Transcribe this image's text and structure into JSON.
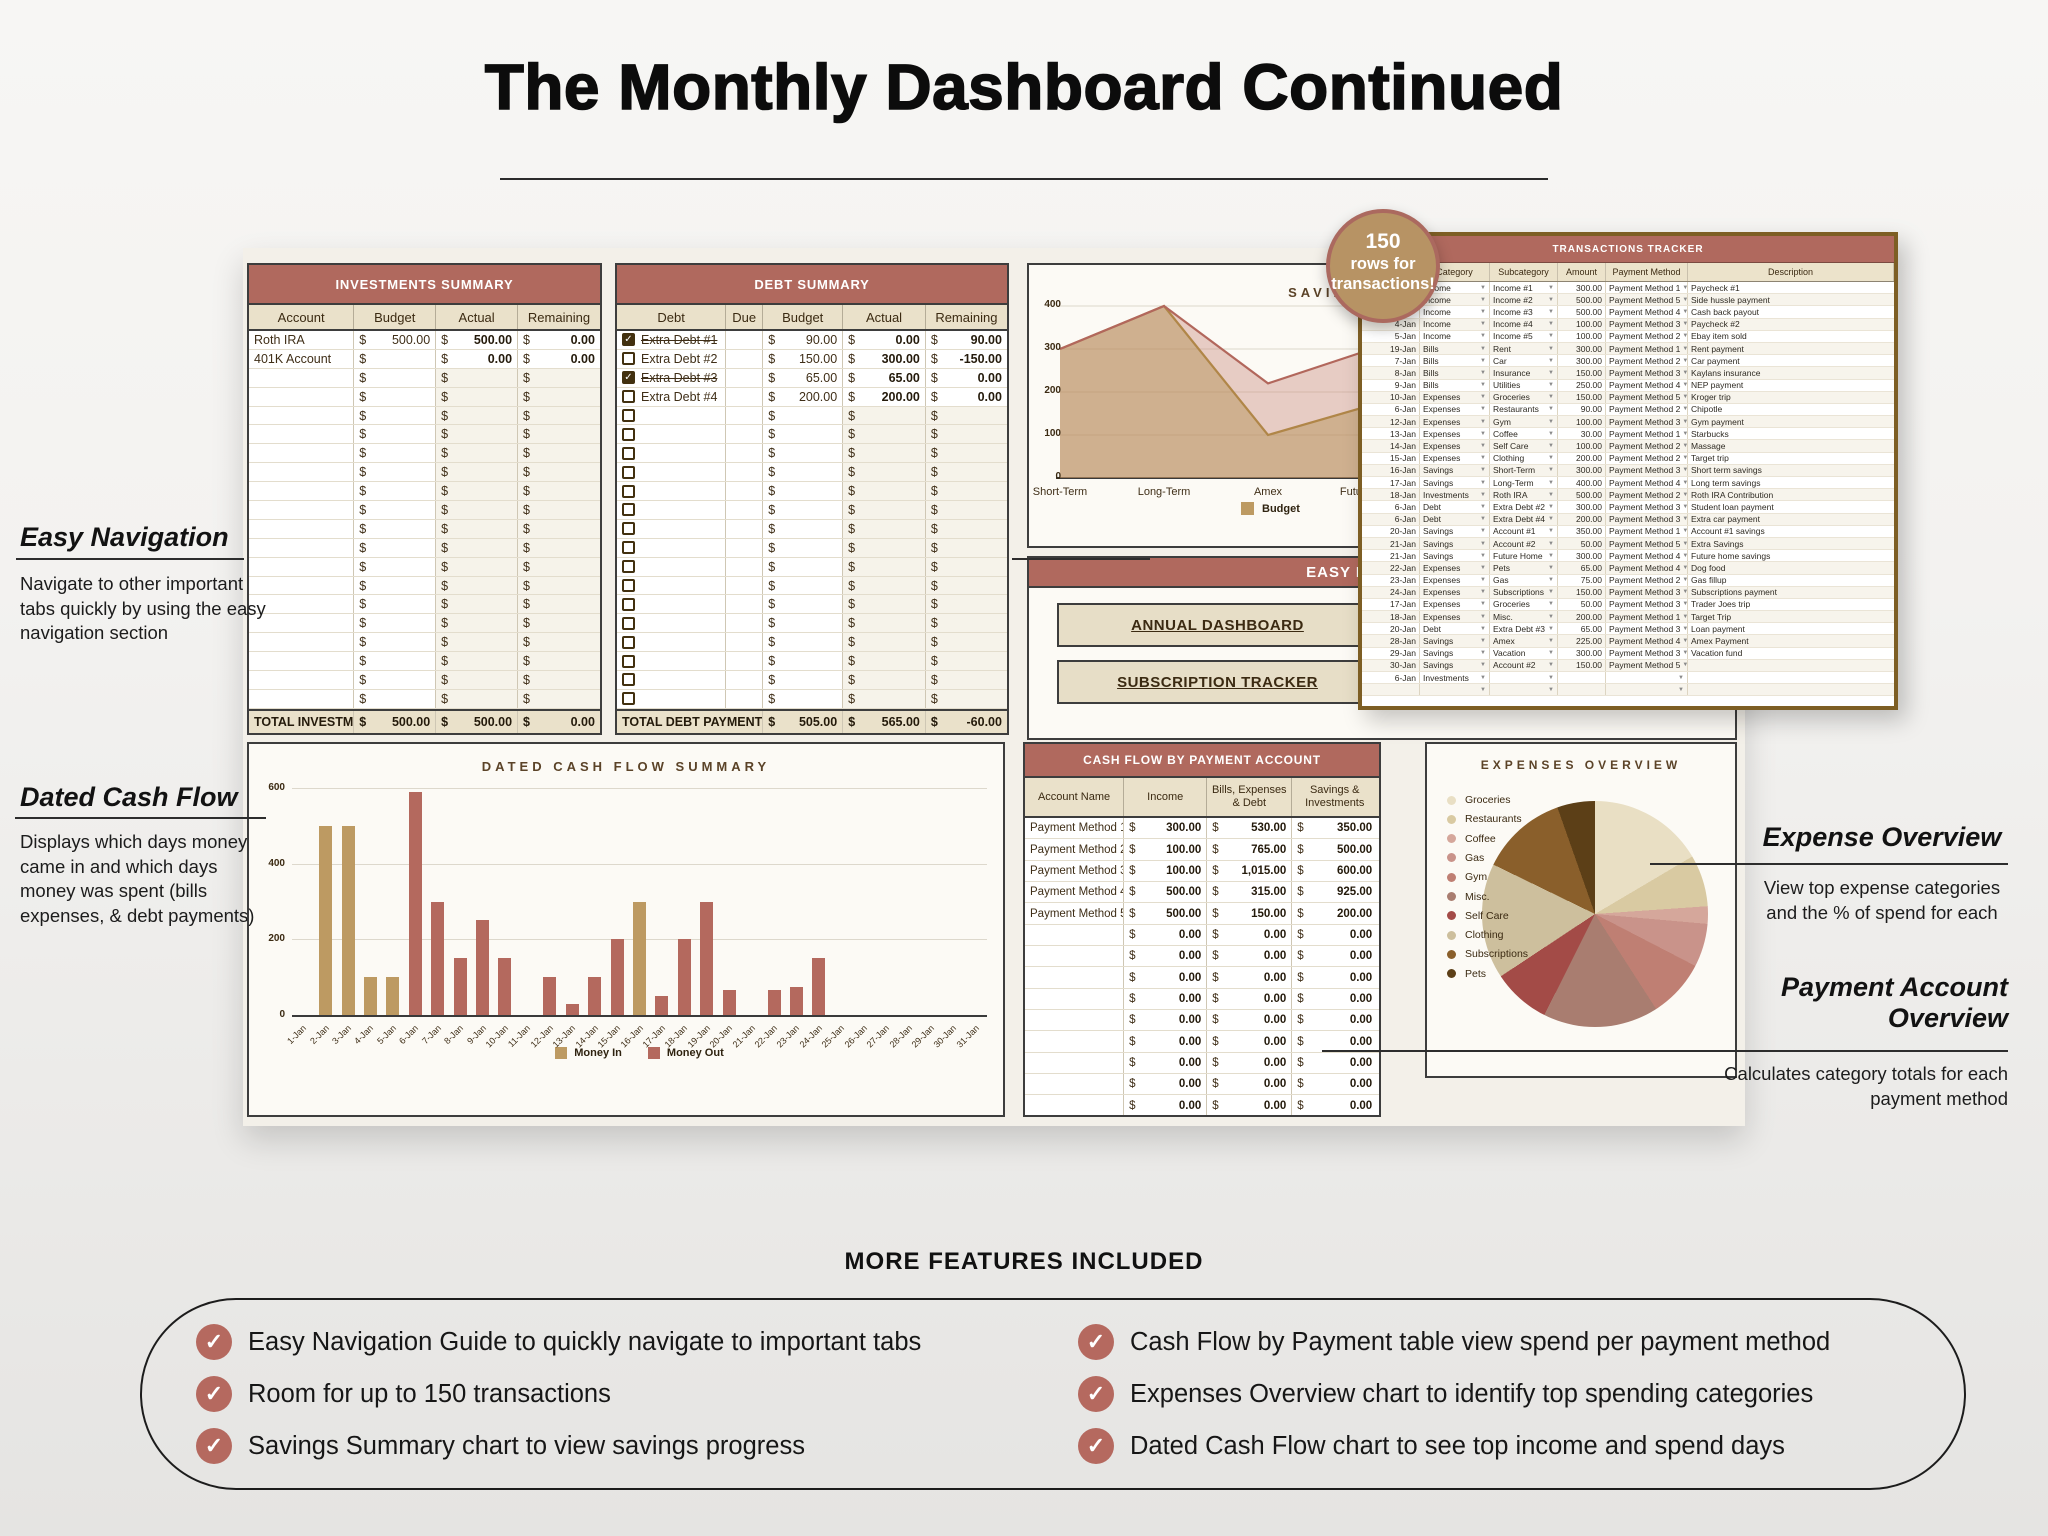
{
  "currency": "$",
  "colors": {
    "accent_rose": "#b0695e",
    "beige_header": "#eae1ca",
    "button_beige": "#e7dec7",
    "tan": "#bd9a62",
    "bar_red": "#b4695e",
    "tracker_border_gold": "#7d5e24",
    "badge_fill": "#b79364",
    "badge_border": "#ab695f",
    "check_circle": "#b5695f"
  },
  "page": {
    "title": "The Monthly Dashboard Continued",
    "more_features": {
      "heading": "MORE FEATURES INCLUDED",
      "left": [
        "Easy Navigation Guide to quickly navigate to important tabs",
        "Room for up to 150 transactions",
        "Savings Summary chart to view savings progress"
      ],
      "right": [
        "Cash Flow by Payment table view spend per payment method",
        "Expenses Overview chart to identify top spending categories",
        "Dated Cash Flow chart to see top income and spend days"
      ]
    }
  },
  "badge": {
    "lines": [
      "150",
      "rows for",
      "transactions!"
    ]
  },
  "annotations": {
    "easy_navigation": {
      "heading": "Easy Navigation",
      "body": "Navigate to other important tabs quickly by using the easy navigation section"
    },
    "dated_cash_flow": {
      "heading": "Dated Cash Flow",
      "body": "Displays which days money came in and which days money was spent (bills expenses, & debt payments)"
    },
    "expense_overview": {
      "heading": "Expense Overview",
      "body": "View top expense categories and the % of spend for each"
    },
    "payment_account_overview": {
      "heading": "Payment Account Overview",
      "body": "Calculates category totals for each payment method"
    }
  },
  "investments": {
    "title": "INVESTMENTS SUMMARY",
    "columns": [
      "Account",
      "Budget",
      "Actual",
      "Remaining"
    ],
    "rows": [
      {
        "account": "Roth IRA",
        "budget": "500.00",
        "actual": "500.00",
        "remaining": "0.00"
      },
      {
        "account": "401K Account",
        "budget": "",
        "actual": "0.00",
        "remaining": "0.00"
      }
    ],
    "empty_rows": 18,
    "total": {
      "label": "TOTAL INVESTMENTS",
      "budget": "500.00",
      "actual": "500.00",
      "remaining": "0.00"
    }
  },
  "debt": {
    "title": "DEBT SUMMARY",
    "columns": [
      "Debt",
      "Due",
      "Budget",
      "Actual",
      "Remaining"
    ],
    "rows": [
      {
        "label": "Extra Debt #1",
        "checked": true,
        "budget": "90.00",
        "actual": "0.00",
        "remaining": "90.00"
      },
      {
        "label": "Extra Debt #2",
        "checked": false,
        "budget": "150.00",
        "actual": "300.00",
        "remaining": "-150.00"
      },
      {
        "label": "Extra Debt #3",
        "checked": true,
        "budget": "65.00",
        "actual": "65.00",
        "remaining": "0.00"
      },
      {
        "label": "Extra Debt #4",
        "checked": false,
        "budget": "200.00",
        "actual": "200.00",
        "remaining": "0.00"
      }
    ],
    "empty_rows": 16,
    "total": {
      "label": "TOTAL DEBT PAYMENTS",
      "budget": "505.00",
      "actual": "565.00",
      "remaining": "-60.00"
    }
  },
  "easy_nav": {
    "title": "EASY NAVIGATION",
    "buttons": [
      "ANNUAL DASHBOARD",
      "SUBSCRIPTION TRACKER"
    ]
  },
  "tracker": {
    "title": "TRANSACTIONS TRACKER",
    "columns": [
      "Date",
      "Category",
      "Subcategory",
      "Amount",
      "Payment Method",
      "Description"
    ],
    "rows": [
      [
        "",
        "Income",
        "Income #1",
        "300.00",
        "Payment Method 1",
        "Paycheck #1"
      ],
      [
        "",
        "Income",
        "Income #2",
        "500.00",
        "Payment Method 5",
        "Side hussle payment"
      ],
      [
        "",
        "Income",
        "Income #3",
        "500.00",
        "Payment Method 4",
        "Cash back payout"
      ],
      [
        "4-Jan",
        "Income",
        "Income #4",
        "100.00",
        "Payment Method 3",
        "Paycheck #2"
      ],
      [
        "5-Jan",
        "Income",
        "Income #5",
        "100.00",
        "Payment Method 2",
        "Ebay item sold"
      ],
      [
        "19-Jan",
        "Bills",
        "Rent",
        "300.00",
        "Payment Method 1",
        "Rent payment"
      ],
      [
        "7-Jan",
        "Bills",
        "Car",
        "300.00",
        "Payment Method 2",
        "Car payment"
      ],
      [
        "8-Jan",
        "Bills",
        "Insurance",
        "150.00",
        "Payment Method 3",
        "Kaylans insurance"
      ],
      [
        "9-Jan",
        "Bills",
        "Utilities",
        "250.00",
        "Payment Method 4",
        "NEP payment"
      ],
      [
        "10-Jan",
        "Expenses",
        "Groceries",
        "150.00",
        "Payment Method 5",
        "Kroger trip"
      ],
      [
        "6-Jan",
        "Expenses",
        "Restaurants",
        "90.00",
        "Payment Method 2",
        "Chipotle"
      ],
      [
        "12-Jan",
        "Expenses",
        "Gym",
        "100.00",
        "Payment Method 3",
        "Gym payment"
      ],
      [
        "13-Jan",
        "Expenses",
        "Coffee",
        "30.00",
        "Payment Method 1",
        "Starbucks"
      ],
      [
        "14-Jan",
        "Expenses",
        "Self Care",
        "100.00",
        "Payment Method 2",
        "Massage"
      ],
      [
        "15-Jan",
        "Expenses",
        "Clothing",
        "200.00",
        "Payment Method 2",
        "Target trip"
      ],
      [
        "16-Jan",
        "Savings",
        "Short-Term",
        "300.00",
        "Payment Method 3",
        "Short term savings"
      ],
      [
        "17-Jan",
        "Savings",
        "Long-Term",
        "400.00",
        "Payment Method 4",
        "Long term savings"
      ],
      [
        "18-Jan",
        "Investments",
        "Roth IRA",
        "500.00",
        "Payment Method 2",
        "Roth IRA Contribution"
      ],
      [
        "6-Jan",
        "Debt",
        "Extra Debt #2",
        "300.00",
        "Payment Method 3",
        "Student loan payment"
      ],
      [
        "6-Jan",
        "Debt",
        "Extra Debt #4",
        "200.00",
        "Payment Method 3",
        "Extra car payment"
      ],
      [
        "20-Jan",
        "Savings",
        "Account #1",
        "350.00",
        "Payment Method 1",
        "Account #1 savings"
      ],
      [
        "21-Jan",
        "Savings",
        "Account #2",
        "50.00",
        "Payment Method 5",
        "Extra Savings"
      ],
      [
        "21-Jan",
        "Savings",
        "Future Home",
        "300.00",
        "Payment Method 4",
        "Future home savings"
      ],
      [
        "22-Jan",
        "Expenses",
        "Pets",
        "65.00",
        "Payment Method 4",
        "Dog food"
      ],
      [
        "23-Jan",
        "Expenses",
        "Gas",
        "75.00",
        "Payment Method 2",
        "Gas fillup"
      ],
      [
        "24-Jan",
        "Expenses",
        "Subscriptions",
        "150.00",
        "Payment Method 3",
        "Subscriptions payment"
      ],
      [
        "17-Jan",
        "Expenses",
        "Groceries",
        "50.00",
        "Payment Method 3",
        "Trader Joes trip"
      ],
      [
        "18-Jan",
        "Expenses",
        "Misc.",
        "200.00",
        "Payment Method 1",
        "Target Trip"
      ],
      [
        "20-Jan",
        "Debt",
        "Extra Debt #3",
        "65.00",
        "Payment Method 3",
        "Loan payment"
      ],
      [
        "28-Jan",
        "Savings",
        "Amex",
        "225.00",
        "Payment Method 4",
        "Amex Payment"
      ],
      [
        "29-Jan",
        "Savings",
        "Vacation",
        "300.00",
        "Payment Method 3",
        "Vacation fund"
      ],
      [
        "30-Jan",
        "Savings",
        "Account #2",
        "150.00",
        "Payment Method 5",
        ""
      ],
      [
        "6-Jan",
        "Investments",
        "",
        "",
        "",
        ""
      ],
      [
        "",
        "",
        "",
        "",
        "",
        ""
      ]
    ]
  },
  "cashflow_table": {
    "title": "CASH FLOW BY PAYMENT ACCOUNT",
    "columns": [
      "Account Name",
      "Income",
      "Bills, Expenses & Debt",
      "Savings & Investments"
    ],
    "rows": [
      {
        "name": "Payment Method 1",
        "income": "300.00",
        "bills": "530.00",
        "savings": "350.00"
      },
      {
        "name": "Payment Method 2",
        "income": "100.00",
        "bills": "765.00",
        "savings": "500.00"
      },
      {
        "name": "Payment Method 3",
        "income": "100.00",
        "bills": "1,015.00",
        "savings": "600.00"
      },
      {
        "name": "Payment Method 4",
        "income": "500.00",
        "bills": "315.00",
        "savings": "925.00"
      },
      {
        "name": "Payment Method 5",
        "income": "500.00",
        "bills": "150.00",
        "savings": "200.00"
      }
    ],
    "zero_rows": 9,
    "zero_value": "0.00"
  },
  "chart_data": [
    {
      "id": "savings_summary",
      "type": "area",
      "title": "SAVINGS SUMMARY",
      "title_visible_fragment": "SA (rest hidden behind badge and transactions table)",
      "categories": [
        "Short-Term",
        "Long-Term",
        "Amex",
        "Future Home"
      ],
      "series": [
        {
          "name": "Budget",
          "color": "#b08648",
          "fill": "rgba(184,148,90,0.5)",
          "values": [
            300,
            400,
            100,
            170
          ]
        },
        {
          "name": "",
          "note": "legend label hidden behind transactions table",
          "color": "#b2675c",
          "fill": "rgba(196,128,116,0.38)",
          "values": [
            300,
            400,
            220,
            300
          ]
        }
      ],
      "ylim": [
        0,
        400
      ],
      "yticks": [
        0,
        100,
        200,
        300,
        400
      ],
      "legend_visible": [
        "Budget"
      ],
      "legend_position": "bottom"
    },
    {
      "id": "dated_cash_flow",
      "type": "bar",
      "title": "DATED CASH FLOW SUMMARY",
      "categories": [
        "1-Jan",
        "2-Jan",
        "3-Jan",
        "4-Jan",
        "5-Jan",
        "6-Jan",
        "7-Jan",
        "8-Jan",
        "9-Jan",
        "10-Jan",
        "11-Jan",
        "12-Jan",
        "13-Jan",
        "14-Jan",
        "15-Jan",
        "16-Jan",
        "17-Jan",
        "18-Jan",
        "19-Jan",
        "20-Jan",
        "21-Jan",
        "22-Jan",
        "23-Jan",
        "24-Jan",
        "25-Jan",
        "26-Jan",
        "27-Jan",
        "28-Jan",
        "29-Jan",
        "30-Jan",
        "31-Jan"
      ],
      "series": [
        {
          "name": "Money In",
          "color": "#bd9a62",
          "values": [
            0,
            500,
            500,
            100,
            100,
            0,
            0,
            0,
            0,
            0,
            0,
            0,
            0,
            0,
            0,
            300,
            0,
            0,
            0,
            0,
            0,
            0,
            0,
            0,
            0,
            0,
            0,
            0,
            0,
            0,
            0
          ]
        },
        {
          "name": "Money Out",
          "color": "#b4695e",
          "values": [
            0,
            0,
            0,
            0,
            0,
            590,
            300,
            150,
            250,
            150,
            0,
            100,
            30,
            100,
            200,
            0,
            50,
            200,
            300,
            65,
            0,
            65,
            75,
            150,
            0,
            0,
            0,
            0,
            0,
            0,
            0
          ]
        }
      ],
      "ylim": [
        0,
        600
      ],
      "yticks": [
        0,
        200,
        400,
        600
      ],
      "legend_position": "bottom"
    },
    {
      "id": "expenses_overview",
      "type": "pie",
      "title": "EXPENSES OVERVIEW",
      "slices": [
        {
          "label": "Groceries",
          "pct": 16.5,
          "color": "#e9dfc4"
        },
        {
          "label": "Restaurants",
          "pct": 7.4,
          "color": "#d9caa2"
        },
        {
          "label": "Coffee",
          "pct": 2.5,
          "color": "#d5a79b"
        },
        {
          "label": "Gas",
          "pct": 6.2,
          "color": "#c9938a"
        },
        {
          "label": "Gym",
          "pct": 8.3,
          "color": "#bf7f73"
        },
        {
          "label": "Misc.",
          "pct": 16.5,
          "color": "#a97d70"
        },
        {
          "label": "Self Care",
          "pct": 8.3,
          "color": "#a34b47"
        },
        {
          "label": "Clothing",
          "pct": 16.5,
          "color": "#cdbf9d"
        },
        {
          "label": "Subscriptions",
          "pct": 12.4,
          "color": "#8a5f2b"
        },
        {
          "label": "Pets",
          "pct": 5.4,
          "color": "#5c3f17"
        }
      ],
      "legend_position": "left"
    }
  ]
}
